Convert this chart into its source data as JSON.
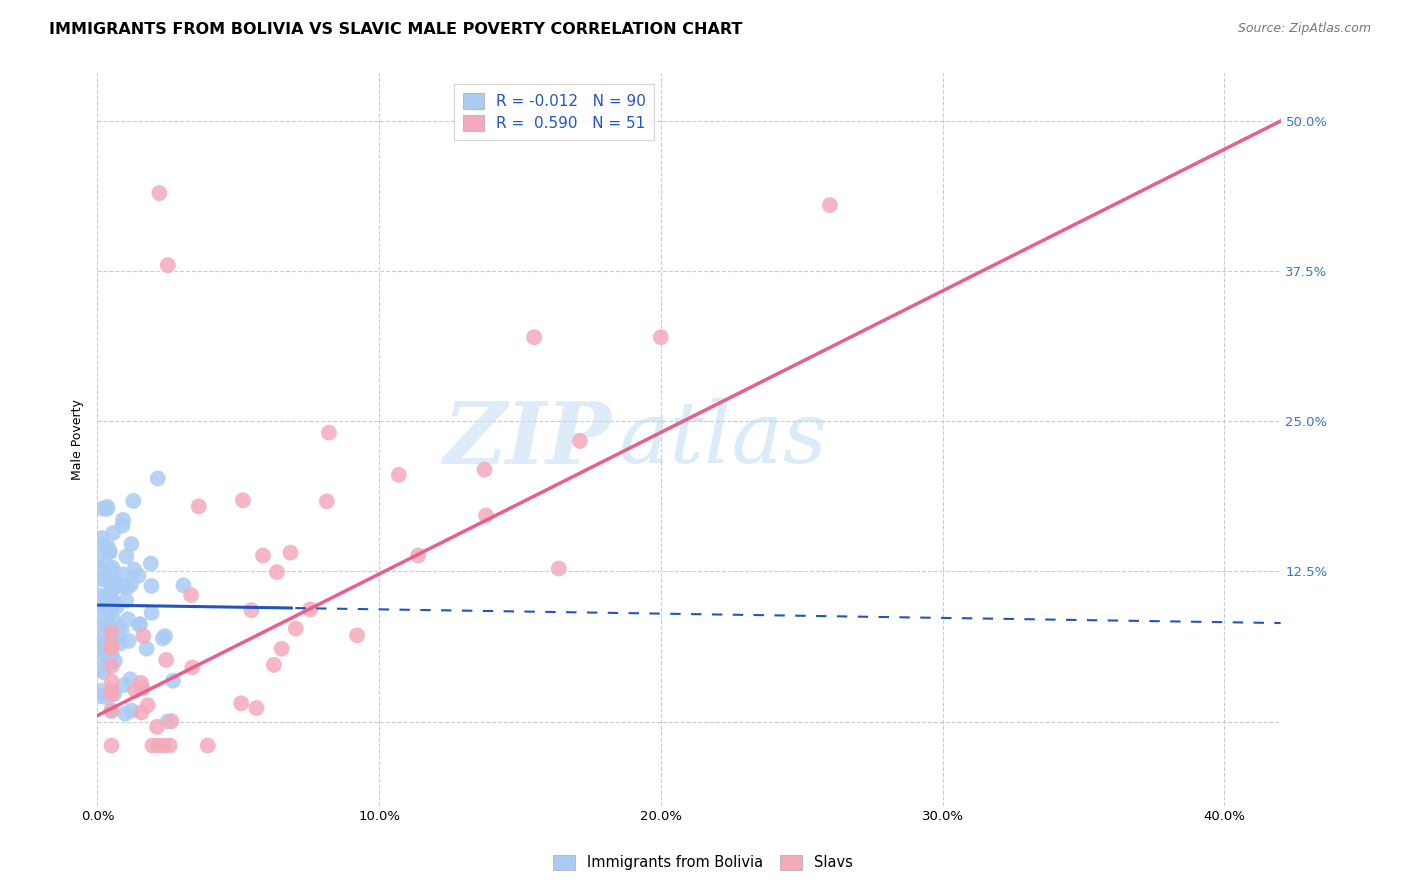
{
  "title": "IMMIGRANTS FROM BOLIVIA VS SLAVIC MALE POVERTY CORRELATION CHART",
  "source": "Source: ZipAtlas.com",
  "ylabel": "Male Poverty",
  "xlim": [
    0.0,
    0.42
  ],
  "ylim": [
    -0.07,
    0.54
  ],
  "watermark_zip": "ZIP",
  "watermark_atlas": "atlas",
  "xticks": [
    0.0,
    0.1,
    0.2,
    0.3,
    0.4
  ],
  "xtick_labels": [
    "0.0%",
    "10.0%",
    "20.0%",
    "30.0%",
    "40.0%"
  ],
  "yticks": [
    0.0,
    0.125,
    0.25,
    0.375,
    0.5
  ],
  "ytick_labels_right": [
    "",
    "12.5%",
    "25.0%",
    "37.5%",
    "50.0%"
  ],
  "bolivia_color": "#aaccf4",
  "slavic_color": "#f4aabb",
  "bolivia_line_color": "#2255bb",
  "slavic_line_color": "#e8608a",
  "grid_color": "#cccccc",
  "background_color": "#ffffff",
  "title_fontsize": 11.5,
  "source_fontsize": 9,
  "axis_label_fontsize": 9,
  "tick_fontsize": 9.5,
  "legend_r_color": "#2255cc",
  "legend_n_color": "#2255cc"
}
